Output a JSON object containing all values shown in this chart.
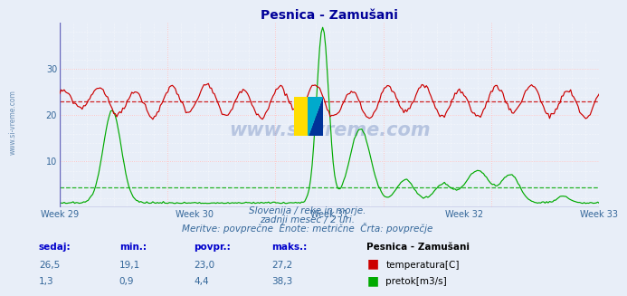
{
  "title": "Pesnica - Zamušani",
  "background_color": "#e8eef8",
  "plot_bg_color": "#e8eef8",
  "x_labels": [
    "Week 29",
    "Week 30",
    "Week 31",
    "Week 32",
    "Week 33"
  ],
  "y_ticks": [
    10,
    20,
    30
  ],
  "y_min": 0,
  "y_max": 40,
  "temp_avg": 23.0,
  "flow_avg": 4.4,
  "temp_color": "#cc0000",
  "flow_color": "#00aa00",
  "subtitle1": "Slovenija / reke in morje.",
  "subtitle2": "zadnji mesec / 2 uri.",
  "subtitle3": "Meritve: povprečne  Enote: metrične  Črta: povprečje",
  "legend_title": "Pesnica - Zamušani",
  "legend_items": [
    {
      "label": "temperatura[C]",
      "color": "#cc0000"
    },
    {
      "label": "pretok[m3/s]",
      "color": "#00aa00"
    }
  ],
  "table_headers": [
    "sedaj:",
    "min.:",
    "povpr.:",
    "maks.:"
  ],
  "table_row1": [
    "26,5",
    "19,1",
    "23,0",
    "27,2"
  ],
  "table_row2": [
    "1,3",
    "0,9",
    "4,4",
    "38,3"
  ],
  "watermark": "www.si-vreme.com",
  "side_label": "www.si-vreme.com",
  "n_points": 360
}
